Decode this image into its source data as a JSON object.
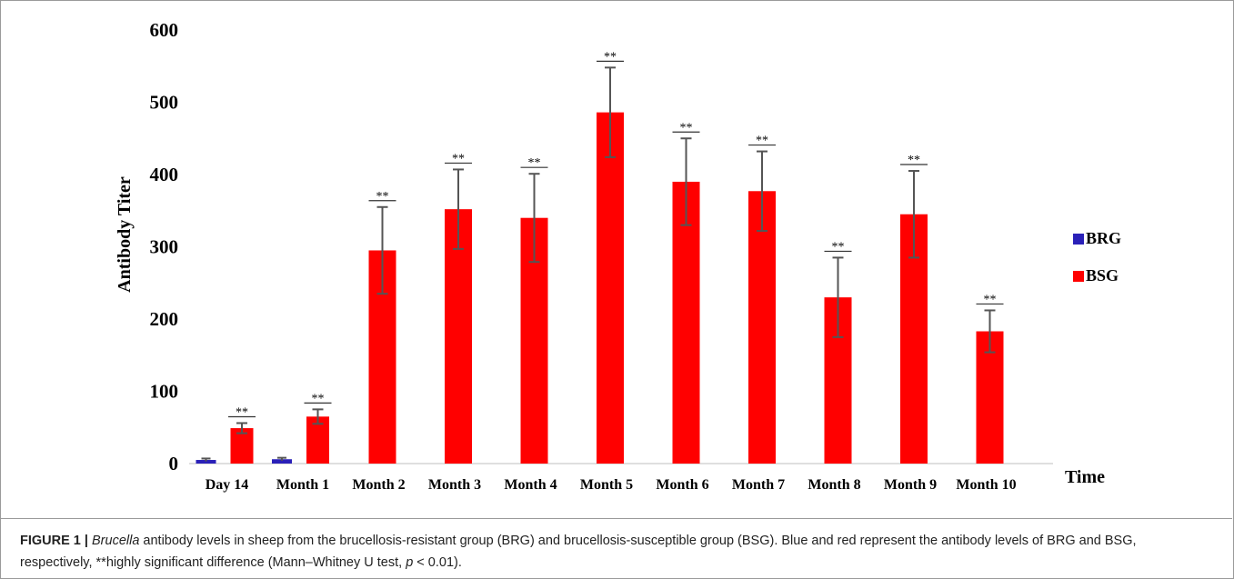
{
  "chart_data": {
    "type": "bar",
    "ylabel": "Antibody Titer",
    "xlabel": "Time",
    "ylim": [
      0,
      600
    ],
    "yticks": [
      0,
      100,
      200,
      300,
      400,
      500,
      600
    ],
    "categories": [
      "Day 14",
      "Month 1",
      "Month 2",
      "Month 3",
      "Month 4",
      "Month 5",
      "Month 6",
      "Month 7",
      "Month 8",
      "Month 9",
      "Month 10"
    ],
    "series": [
      {
        "name": "BRG",
        "color": "#2a20b8",
        "values": [
          5,
          6,
          null,
          null,
          null,
          null,
          null,
          null,
          null,
          null,
          null
        ],
        "errors": [
          2,
          2,
          null,
          null,
          null,
          null,
          null,
          null,
          null,
          null,
          null
        ]
      },
      {
        "name": "BSG",
        "color": "#ff0000",
        "values": [
          49,
          65,
          295,
          352,
          340,
          486,
          390,
          377,
          230,
          345,
          183
        ],
        "errors": [
          7,
          10,
          60,
          55,
          61,
          62,
          60,
          55,
          55,
          60,
          29
        ]
      }
    ],
    "significance": [
      "**",
      "**",
      "**",
      "**",
      "**",
      "**",
      "**",
      "**",
      "**",
      "**",
      "**"
    ],
    "legend_position": "right",
    "grid": false
  },
  "caption": {
    "label": "FIGURE 1 |",
    "italic_word": "Brucella",
    "text_1": " antibody levels in sheep from the brucellosis-resistant group (BRG) and brucellosis-susceptible group (BSG). Blue and red represent the antibody levels of BRG and BSG, respectively, **highly significant difference (Mann–Whitney U test, ",
    "italic_p": "p",
    "text_2": " < 0.01)."
  }
}
